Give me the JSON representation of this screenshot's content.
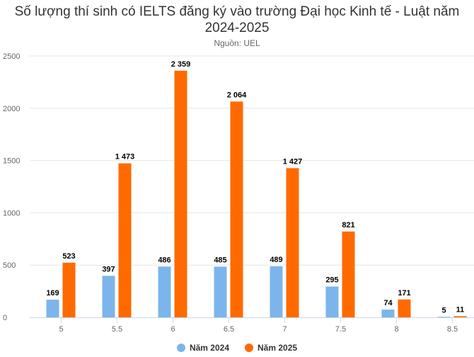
{
  "chart_data": {
    "type": "bar",
    "title": "Số lượng thí sinh có IELTS đăng ký vào trường Đại học Kinh tế - Luật năm 2024-2025",
    "subtitle": "Nguồn: UEL",
    "xlabel": "",
    "ylabel": "",
    "categories": [
      "5",
      "5.5",
      "6",
      "6.5",
      "7",
      "7.5",
      "8",
      "8.5"
    ],
    "series": [
      {
        "name": "Năm 2024",
        "color": "#7cb5ec",
        "values": [
          169,
          397,
          486,
          485,
          489,
          295,
          74,
          5
        ],
        "labels": [
          "169",
          "397",
          "486",
          "485",
          "489",
          "295",
          "74",
          "5"
        ]
      },
      {
        "name": "Năm 2025",
        "color": "#ff6a00",
        "values": [
          523,
          1473,
          2359,
          2064,
          1427,
          821,
          171,
          11
        ],
        "labels": [
          "523",
          "1 473",
          "2 359",
          "2 064",
          "1 427",
          "821",
          "171",
          "11"
        ]
      }
    ],
    "ylim": [
      0,
      2500
    ],
    "yticks": [
      "0",
      "500",
      "1000",
      "1500",
      "2000",
      "2500"
    ],
    "grid": true,
    "legend": "bottom"
  }
}
